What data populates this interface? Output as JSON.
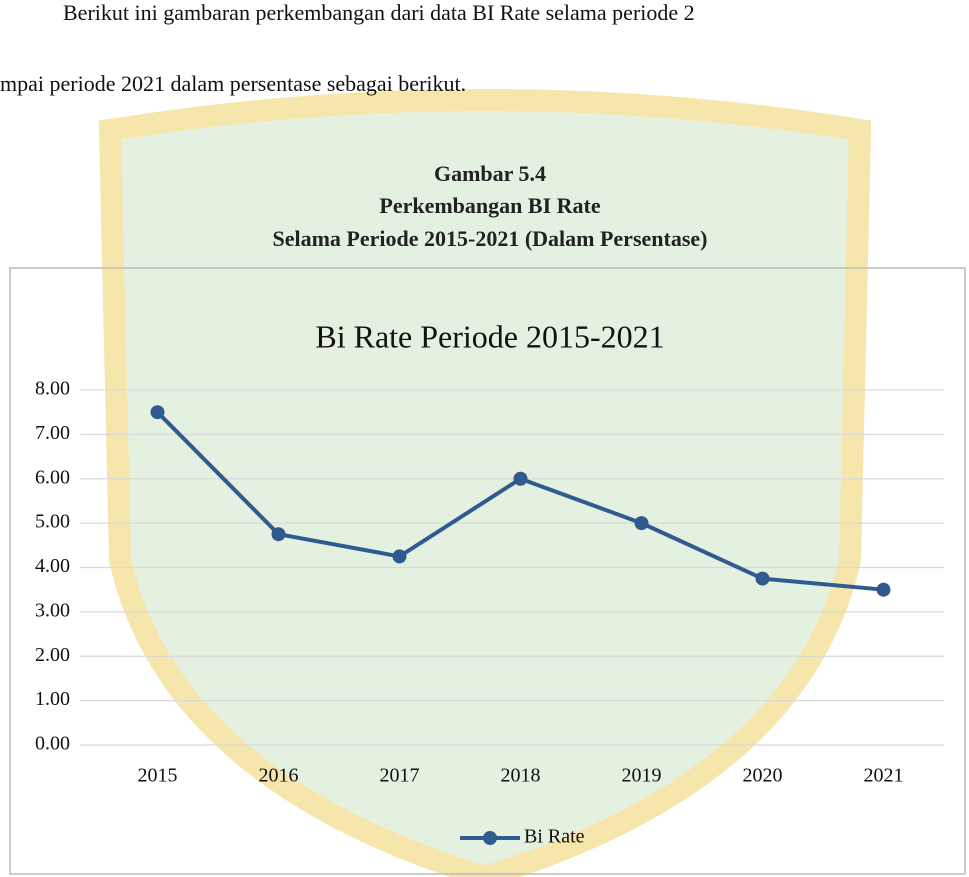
{
  "document": {
    "paragraph_lines": [
      "Berikut ini gambaran perkembangan dari data BI Rate selama periode 2",
      "mpai periode 2021 dalam persentase sebagai berikut."
    ],
    "caption": [
      "Gambar 5.4",
      "Perkembangan BI Rate",
      "Selama Periode 2015-2021 (Dalam Persentase)"
    ]
  },
  "chart_data": {
    "type": "line",
    "title": "Bi Rate Periode 2015-2021",
    "categories": [
      "2015",
      "2016",
      "2017",
      "2018",
      "2019",
      "2020",
      "2021"
    ],
    "series": [
      {
        "name": "Bi Rate",
        "color": "#2f5b8f",
        "values": [
          7.5,
          4.75,
          4.25,
          6.0,
          5.0,
          3.75,
          3.5
        ]
      }
    ],
    "ylim": [
      0,
      8
    ],
    "yticks": [
      {
        "value": 0,
        "label": "0.00"
      },
      {
        "value": 1,
        "label": "1.00"
      },
      {
        "value": 2,
        "label": "2.00"
      },
      {
        "value": 3,
        "label": "3.00"
      },
      {
        "value": 4,
        "label": "4.00"
      },
      {
        "value": 5,
        "label": "5.00"
      },
      {
        "value": 6,
        "label": "6.00"
      },
      {
        "value": 7,
        "label": "7.00"
      },
      {
        "value": 8,
        "label": "8.00"
      }
    ],
    "grid": true,
    "legend": "bottom"
  }
}
